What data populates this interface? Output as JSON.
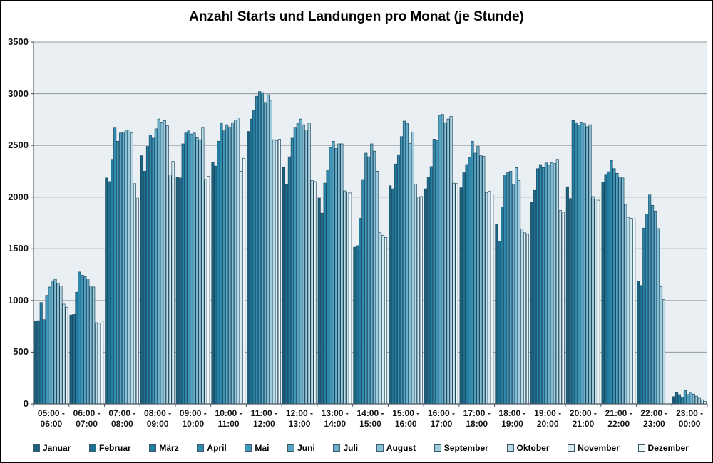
{
  "chart_data": {
    "type": "bar",
    "title": "Anzahl Starts und Landungen pro Monat (je Stunde)",
    "xlabel": "",
    "ylabel": "",
    "ylim": [
      0,
      3500
    ],
    "y_ticks": [
      0,
      500,
      1000,
      1500,
      2000,
      2500,
      3000,
      3500
    ],
    "grid": true,
    "legend_position": "bottom",
    "plot_bg": "#e9eff3",
    "grid_color": "#8f989e",
    "axis_color": "#4e5a63",
    "bar_border": "#1b4a60",
    "categories": [
      "05:00 - 06:00",
      "06:00 - 07:00",
      "07:00 - 08:00",
      "08:00 - 09:00",
      "09:00 - 10:00",
      "10:00 - 11:00",
      "11:00 - 12:00",
      "12:00 - 13:00",
      "13:00 - 14:00",
      "14:00 - 15:00",
      "15:00 - 16:00",
      "16:00 - 17:00",
      "17:00 - 18:00",
      "18:00 - 19:00",
      "19:00 - 20:00",
      "20:00 - 21:00",
      "21:00 - 22:00",
      "22:00 - 23:00",
      "23:00 - 00:00"
    ],
    "series": [
      {
        "name": "Januar",
        "color": "#1c627f",
        "values": [
          800,
          860,
          2185,
          2400,
          2190,
          2335,
          2635,
          2285,
          1990,
          1515,
          2110,
          2080,
          2090,
          1735,
          1950,
          2100,
          2145,
          1185,
          70
        ]
      },
      {
        "name": "Februar",
        "color": "#1f7092",
        "values": [
          805,
          865,
          2150,
          2250,
          2185,
          2300,
          2755,
          2120,
          1845,
          1530,
          2080,
          2195,
          2235,
          1575,
          2065,
          1985,
          2220,
          1145,
          110
        ]
      },
      {
        "name": "März",
        "color": "#2280a5",
        "values": [
          980,
          1080,
          2365,
          2490,
          2515,
          2540,
          2840,
          2390,
          2135,
          1795,
          2320,
          2295,
          2315,
          1905,
          2275,
          2740,
          2245,
          1700,
          90
        ]
      },
      {
        "name": "April",
        "color": "#2f8cb0",
        "values": [
          815,
          1275,
          2675,
          2600,
          2620,
          2720,
          2975,
          2570,
          2260,
          2170,
          2410,
          2560,
          2380,
          2215,
          2315,
          2720,
          2355,
          1835,
          65
        ]
      },
      {
        "name": "Mai",
        "color": "#4097ba",
        "values": [
          1050,
          1245,
          2540,
          2570,
          2640,
          2640,
          3020,
          2675,
          2480,
          2425,
          2585,
          2550,
          2540,
          2235,
          2285,
          2695,
          2275,
          2020,
          130
        ]
      },
      {
        "name": "Juni",
        "color": "#55a4c3",
        "values": [
          1130,
          1230,
          2620,
          2660,
          2610,
          2700,
          3010,
          2710,
          2540,
          2390,
          2735,
          2790,
          2425,
          2250,
          2330,
          2725,
          2230,
          1920,
          90
        ]
      },
      {
        "name": "Juli",
        "color": "#6cb0cc",
        "values": [
          1190,
          1210,
          2630,
          2755,
          2620,
          2675,
          2915,
          2755,
          2470,
          2515,
          2710,
          2800,
          2490,
          2125,
          2310,
          2710,
          2195,
          1865,
          115
        ]
      },
      {
        "name": "August",
        "color": "#86bed5",
        "values": [
          1205,
          1140,
          2640,
          2725,
          2575,
          2720,
          2990,
          2700,
          2515,
          2445,
          2520,
          2720,
          2400,
          2285,
          2335,
          2680,
          2185,
          1695,
          95
        ]
      },
      {
        "name": "September",
        "color": "#a0ccdd",
        "values": [
          1165,
          1130,
          2650,
          2740,
          2555,
          2745,
          2935,
          2650,
          2515,
          2250,
          2630,
          2755,
          2395,
          2160,
          2325,
          2700,
          1930,
          1135,
          75
        ]
      },
      {
        "name": "Oktober",
        "color": "#badae6",
        "values": [
          1140,
          785,
          2620,
          2690,
          2675,
          2765,
          2555,
          2715,
          2060,
          1655,
          2125,
          2780,
          2045,
          1690,
          2365,
          2005,
          1805,
          1010,
          55
        ]
      },
      {
        "name": "November",
        "color": "#d5e7ef",
        "values": [
          965,
          780,
          2130,
          2215,
          2170,
          2250,
          2545,
          2160,
          2050,
          1630,
          2000,
          2135,
          2055,
          1655,
          1870,
          1980,
          1795,
          0,
          40
        ]
      },
      {
        "name": "Dezember",
        "color": "#eef6f9",
        "values": [
          935,
          800,
          1985,
          2345,
          2200,
          2375,
          2560,
          2150,
          2040,
          1610,
          2005,
          2130,
          2030,
          1640,
          1855,
          1970,
          1790,
          0,
          25
        ]
      }
    ]
  }
}
